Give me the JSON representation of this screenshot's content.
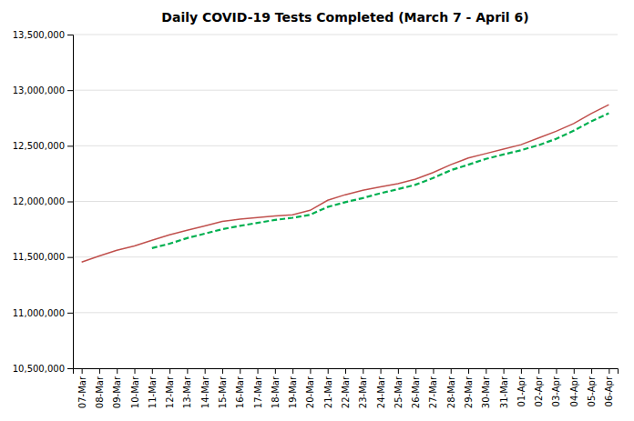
{
  "chart_data": {
    "type": "line",
    "title": "Daily COVID-19 Tests Completed (March 7 - April 6)",
    "categories": [
      "07-Mar",
      "08-Mar",
      "09-Mar",
      "10-Mar",
      "11-Mar",
      "12-Mar",
      "13-Mar",
      "14-Mar",
      "15-Mar",
      "16-Mar",
      "17-Mar",
      "18-Mar",
      "19-Mar",
      "20-Mar",
      "21-Mar",
      "22-Mar",
      "23-Mar",
      "24-Mar",
      "25-Mar",
      "26-Mar",
      "27-Mar",
      "28-Mar",
      "29-Mar",
      "30-Mar",
      "31-Mar",
      "01-Apr",
      "02-Apr",
      "03-Apr",
      "04-Apr",
      "05-Apr",
      "06-Apr"
    ],
    "series": [
      {
        "color": "#C0504D",
        "line_style": "solid",
        "values": [
          11455000,
          11510000,
          11560000,
          11600000,
          11650000,
          11700000,
          11740000,
          11780000,
          11820000,
          11840000,
          11855000,
          11870000,
          11880000,
          11920000,
          12010000,
          12060000,
          12100000,
          12130000,
          12160000,
          12200000,
          12260000,
          12330000,
          12390000,
          12430000,
          12470000,
          12510000,
          12570000,
          12630000,
          12700000,
          12790000,
          12870000
        ]
      },
      {
        "color": "#00B050",
        "line_style": "dashed",
        "values": [
          null,
          null,
          null,
          null,
          11580000,
          11620000,
          11670000,
          11710000,
          11750000,
          11780000,
          11807000,
          11833000,
          11853000,
          11880000,
          11950000,
          11993000,
          12030000,
          12073000,
          12110000,
          12150000,
          12210000,
          12280000,
          12330000,
          12382000,
          12422000,
          12460000,
          12506000,
          12562000,
          12636000,
          12720000,
          12793000
        ]
      }
    ],
    "ylim": [
      10500000,
      13500000
    ],
    "yticks": [
      {
        "value": 10500000,
        "label": "10,500,000"
      },
      {
        "value": 11000000,
        "label": "11,000,000"
      },
      {
        "value": 11500000,
        "label": "11,500,000"
      },
      {
        "value": 12000000,
        "label": "12,000,000"
      },
      {
        "value": 12500000,
        "label": "12,500,000"
      },
      {
        "value": 13000000,
        "label": "13,000,000"
      },
      {
        "value": 13500000,
        "label": "13,500,000"
      }
    ],
    "grid": true
  }
}
